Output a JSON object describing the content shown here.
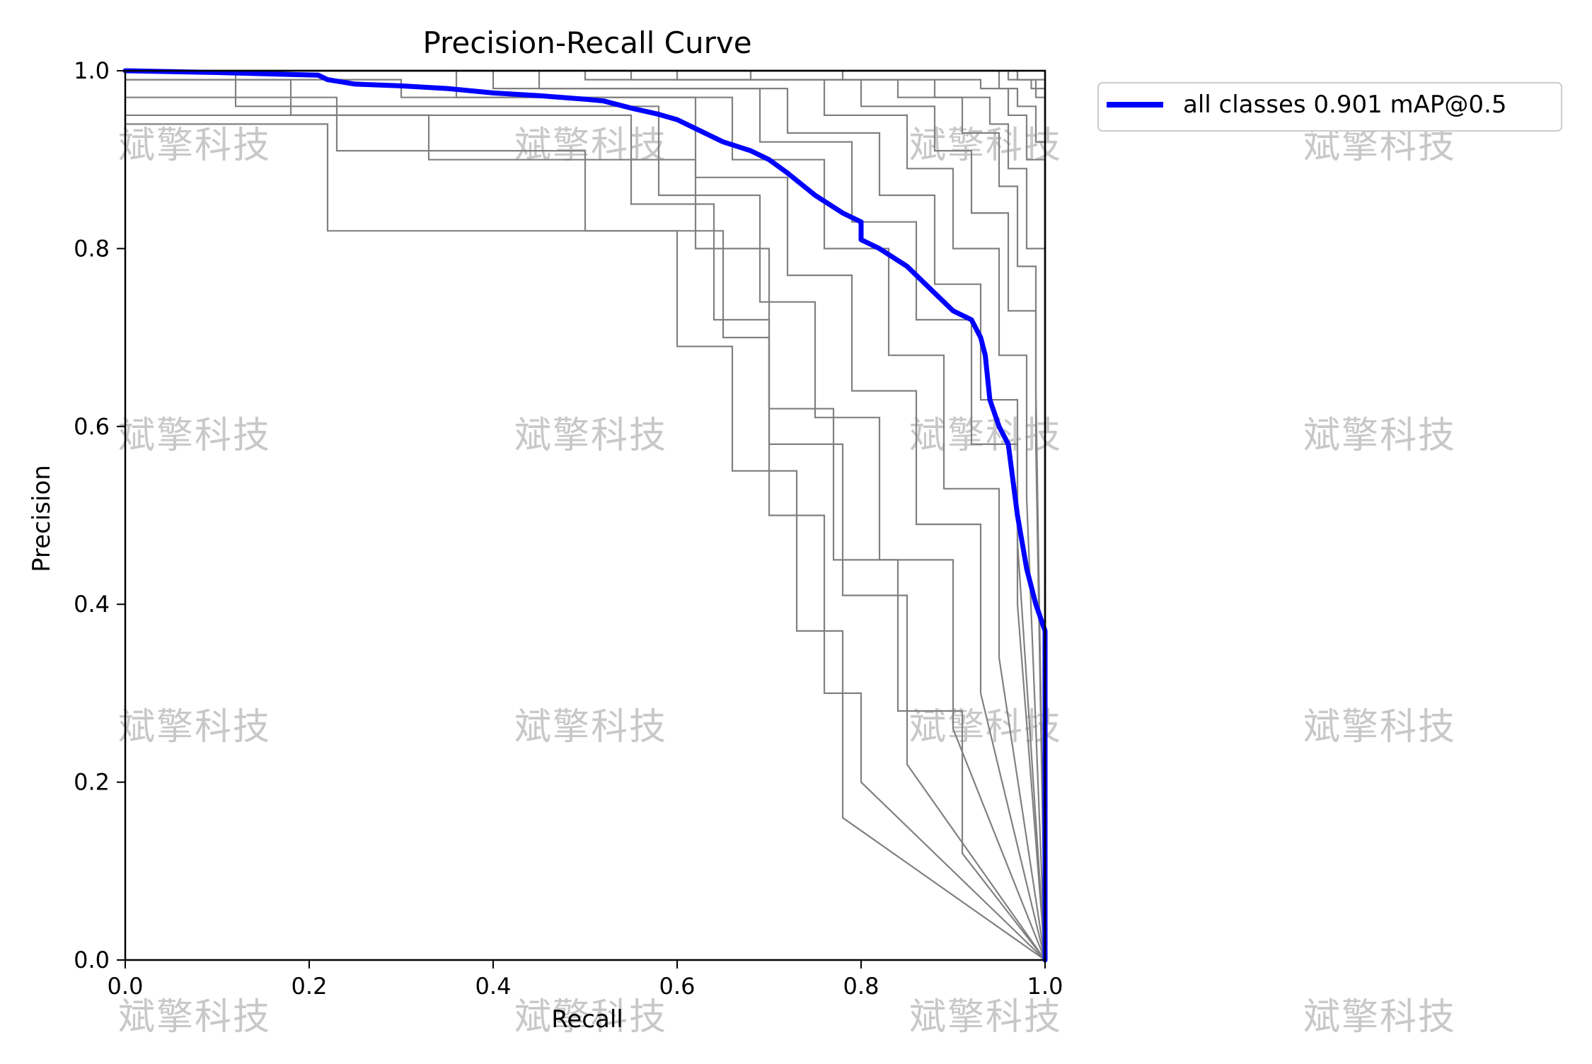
{
  "chart_data": {
    "type": "line",
    "title": "Precision-Recall Curve",
    "xlabel": "Recall",
    "ylabel": "Precision",
    "xlim": [
      0.0,
      1.0
    ],
    "ylim": [
      0.0,
      1.0
    ],
    "xticks": [
      "0.0",
      "0.2",
      "0.4",
      "0.6",
      "0.8",
      "1.0"
    ],
    "yticks": [
      "0.0",
      "0.2",
      "0.4",
      "0.6",
      "0.8",
      "1.0"
    ],
    "grid": false,
    "legend_position": "outside-top-right",
    "watermark_text": "斌擎科技",
    "series": [
      {
        "name": "all classes 0.901 mAP@0.5",
        "color": "#0000ff",
        "width": "thick",
        "x": [
          0.0,
          0.1,
          0.21,
          0.22,
          0.25,
          0.3,
          0.35,
          0.4,
          0.45,
          0.5,
          0.52,
          0.55,
          0.58,
          0.6,
          0.62,
          0.65,
          0.68,
          0.7,
          0.72,
          0.75,
          0.78,
          0.8,
          0.8,
          0.82,
          0.85,
          0.87,
          0.9,
          0.92,
          0.93,
          0.935,
          0.94,
          0.95,
          0.96,
          0.97,
          0.98,
          0.985,
          0.99,
          1.0,
          1.0
        ],
        "y": [
          1.0,
          0.998,
          0.995,
          0.99,
          0.985,
          0.983,
          0.98,
          0.975,
          0.972,
          0.968,
          0.966,
          0.958,
          0.951,
          0.945,
          0.935,
          0.92,
          0.91,
          0.9,
          0.885,
          0.86,
          0.84,
          0.83,
          0.81,
          0.8,
          0.78,
          0.76,
          0.73,
          0.72,
          0.7,
          0.68,
          0.63,
          0.6,
          0.58,
          0.5,
          0.44,
          0.42,
          0.4,
          0.37,
          0.0
        ]
      }
    ],
    "class_series": [
      {
        "color": "#808080",
        "x": [
          0.0,
          0.22,
          0.22,
          0.65,
          0.65,
          0.7,
          0.7,
          0.76,
          0.76,
          0.8,
          0.8,
          1.0
        ],
        "y": [
          0.94,
          0.94,
          0.82,
          0.82,
          0.7,
          0.7,
          0.5,
          0.5,
          0.3,
          0.3,
          0.2,
          0.0
        ]
      },
      {
        "color": "#808080",
        "x": [
          0.0,
          0.23,
          0.23,
          0.5,
          0.5,
          0.6,
          0.6,
          0.66,
          0.66,
          0.73,
          0.73,
          0.78,
          0.78,
          1.0
        ],
        "y": [
          0.97,
          0.97,
          0.91,
          0.91,
          0.82,
          0.82,
          0.69,
          0.69,
          0.55,
          0.55,
          0.37,
          0.37,
          0.16,
          0.0
        ]
      },
      {
        "color": "#808080",
        "x": [
          0.0,
          0.18,
          0.18,
          0.55,
          0.55,
          0.64,
          0.64,
          0.7,
          0.7,
          0.78,
          0.78,
          0.85,
          0.85,
          1.0
        ],
        "y": [
          0.99,
          0.99,
          0.95,
          0.95,
          0.85,
          0.85,
          0.72,
          0.72,
          0.58,
          0.58,
          0.41,
          0.41,
          0.22,
          0.0
        ]
      },
      {
        "color": "#808080",
        "x": [
          0.0,
          0.12,
          0.12,
          0.58,
          0.58,
          0.69,
          0.69,
          0.75,
          0.75,
          0.82,
          0.82,
          0.9,
          0.9,
          1.0
        ],
        "y": [
          1.0,
          1.0,
          0.96,
          0.96,
          0.86,
          0.86,
          0.74,
          0.74,
          0.61,
          0.61,
          0.45,
          0.45,
          0.26,
          0.0
        ]
      },
      {
        "color": "#808080",
        "x": [
          0.0,
          0.3,
          0.3,
          0.62,
          0.62,
          0.72,
          0.72,
          0.79,
          0.79,
          0.86,
          0.86,
          0.93,
          0.93,
          1.0
        ],
        "y": [
          0.99,
          0.99,
          0.97,
          0.97,
          0.88,
          0.88,
          0.77,
          0.77,
          0.64,
          0.64,
          0.49,
          0.49,
          0.3,
          0.0
        ]
      },
      {
        "color": "#808080",
        "x": [
          0.0,
          0.36,
          0.36,
          0.66,
          0.66,
          0.76,
          0.76,
          0.83,
          0.83,
          0.89,
          0.89,
          0.95,
          0.95,
          1.0
        ],
        "y": [
          1.0,
          1.0,
          0.97,
          0.97,
          0.9,
          0.9,
          0.8,
          0.8,
          0.68,
          0.68,
          0.53,
          0.53,
          0.34,
          0.0
        ]
      },
      {
        "color": "#808080",
        "x": [
          0.0,
          0.4,
          0.4,
          0.69,
          0.69,
          0.79,
          0.79,
          0.86,
          0.86,
          0.92,
          0.92,
          0.97,
          0.97,
          1.0
        ],
        "y": [
          1.0,
          1.0,
          0.98,
          0.98,
          0.92,
          0.92,
          0.83,
          0.83,
          0.72,
          0.72,
          0.58,
          0.58,
          0.4,
          0.0
        ]
      },
      {
        "color": "#808080",
        "x": [
          0.0,
          0.45,
          0.45,
          0.72,
          0.72,
          0.82,
          0.82,
          0.88,
          0.88,
          0.93,
          0.93,
          0.97,
          0.97,
          1.0
        ],
        "y": [
          1.0,
          1.0,
          0.98,
          0.98,
          0.93,
          0.93,
          0.86,
          0.86,
          0.76,
          0.76,
          0.63,
          0.63,
          0.47,
          0.0
        ]
      },
      {
        "color": "#808080",
        "x": [
          0.0,
          0.5,
          0.5,
          0.76,
          0.76,
          0.85,
          0.85,
          0.9,
          0.9,
          0.95,
          0.95,
          0.98,
          0.98,
          1.0
        ],
        "y": [
          1.0,
          1.0,
          0.99,
          0.99,
          0.95,
          0.95,
          0.89,
          0.89,
          0.8,
          0.8,
          0.68,
          0.68,
          0.52,
          0.0
        ]
      },
      {
        "color": "#808080",
        "x": [
          0.0,
          0.55,
          0.55,
          0.8,
          0.8,
          0.88,
          0.88,
          0.92,
          0.92,
          0.96,
          0.96,
          0.99,
          0.99,
          1.0
        ],
        "y": [
          1.0,
          1.0,
          0.99,
          0.99,
          0.96,
          0.96,
          0.91,
          0.91,
          0.84,
          0.84,
          0.73,
          0.73,
          0.58,
          0.0
        ]
      },
      {
        "color": "#808080",
        "x": [
          0.0,
          0.6,
          0.6,
          0.84,
          0.84,
          0.91,
          0.91,
          0.95,
          0.95,
          0.97,
          0.97,
          0.99,
          0.99,
          1.0
        ],
        "y": [
          1.0,
          1.0,
          0.99,
          0.99,
          0.97,
          0.97,
          0.93,
          0.93,
          0.87,
          0.87,
          0.78,
          0.78,
          0.64,
          0.0
        ]
      },
      {
        "color": "#808080",
        "x": [
          0.0,
          0.68,
          0.68,
          0.88,
          0.88,
          0.94,
          0.94,
          0.96,
          0.96,
          0.98,
          0.98,
          1.0,
          1.0
        ],
        "y": [
          1.0,
          1.0,
          0.99,
          0.99,
          0.97,
          0.97,
          0.94,
          0.94,
          0.89,
          0.89,
          0.8,
          0.8,
          0.0
        ]
      },
      {
        "color": "#808080",
        "x": [
          0.0,
          0.78,
          0.78,
          0.93,
          0.93,
          0.96,
          0.96,
          0.98,
          0.98,
          1.0,
          1.0
        ],
        "y": [
          1.0,
          1.0,
          0.99,
          0.99,
          0.98,
          0.98,
          0.95,
          0.95,
          0.9,
          0.9,
          0.0
        ]
      },
      {
        "color": "#808080",
        "x": [
          0.0,
          0.85,
          0.85,
          0.95,
          0.95,
          0.97,
          0.97,
          0.99,
          0.99,
          1.0,
          1.0
        ],
        "y": [
          1.0,
          1.0,
          1.0,
          1.0,
          0.98,
          0.98,
          0.96,
          0.96,
          0.92,
          0.92,
          0.0
        ]
      },
      {
        "color": "#808080",
        "x": [
          0.0,
          0.94,
          0.94,
          0.97,
          0.97,
          0.99,
          0.99,
          1.0,
          1.0
        ],
        "y": [
          1.0,
          1.0,
          1.0,
          1.0,
          0.99,
          0.99,
          0.97,
          0.97,
          0.0
        ]
      },
      {
        "color": "#808080",
        "x": [
          0.0,
          0.96,
          0.96,
          0.985,
          0.985,
          1.0,
          1.0
        ],
        "y": [
          1.0,
          1.0,
          0.99,
          0.99,
          0.98,
          0.98,
          0.0
        ]
      },
      {
        "color": "#808080",
        "x": [
          0.0,
          0.97,
          0.97,
          1.0,
          1.0
        ],
        "y": [
          1.0,
          1.0,
          0.99,
          0.99,
          0.0
        ]
      },
      {
        "color": "#808080",
        "x": [
          0.0,
          0.985,
          0.985,
          1.0,
          1.0
        ],
        "y": [
          1.0,
          1.0,
          1.0,
          1.0,
          0.0
        ]
      },
      {
        "color": "#808080",
        "x": [
          0.0,
          0.995,
          0.995,
          1.0,
          1.0
        ],
        "y": [
          1.0,
          1.0,
          1.0,
          1.0,
          0.0
        ]
      },
      {
        "color": "#808080",
        "x": [
          0.0,
          0.33,
          0.33,
          0.62,
          0.62,
          0.7,
          0.7,
          0.77,
          0.77,
          0.84,
          0.84,
          0.91,
          0.91,
          1.0
        ],
        "y": [
          0.95,
          0.95,
          0.9,
          0.9,
          0.8,
          0.8,
          0.62,
          0.62,
          0.45,
          0.45,
          0.28,
          0.28,
          0.12,
          0.0
        ]
      }
    ]
  }
}
